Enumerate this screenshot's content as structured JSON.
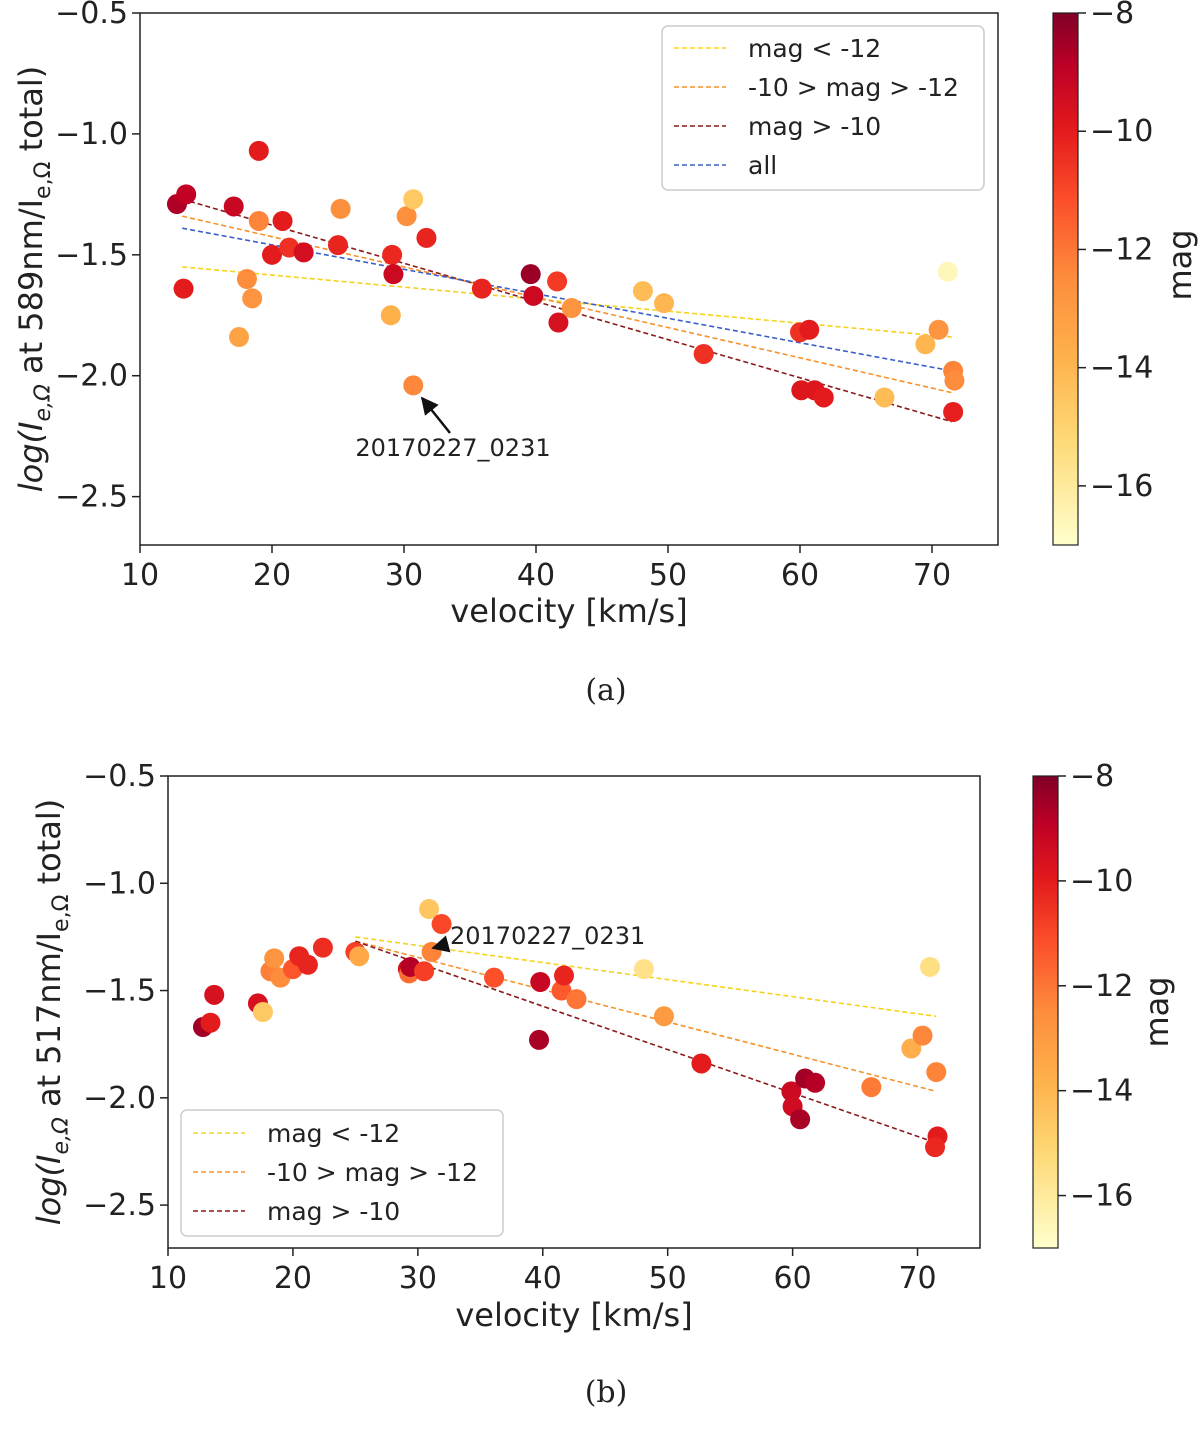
{
  "chart_data": [
    {
      "type": "scatter",
      "panel_label": "(a)",
      "xlabel": "velocity [km/s]",
      "ylabel_prefix": "log(I",
      "ylabel_sub1": "e,Ω",
      "ylabel_mid": " at 589nm/I",
      "ylabel_sub2": "e,Ω",
      "ylabel_suffix": " total)",
      "xlim": [
        10,
        75
      ],
      "ylim": [
        -2.7,
        -0.5
      ],
      "xticks": [
        10,
        20,
        30,
        40,
        50,
        60,
        70
      ],
      "xtick_labels": [
        "10",
        "20",
        "30",
        "40",
        "50",
        "60",
        "70"
      ],
      "yticks": [
        -2.5,
        -2.0,
        -1.5,
        -1.0,
        -0.5
      ],
      "ytick_labels": [
        "−2.5",
        "−2.0",
        "−1.5",
        "−1.0",
        "−0.5"
      ],
      "grid": false,
      "legend_position": "top-right",
      "colorbar": {
        "label": "mag",
        "range": [
          -17,
          -8
        ],
        "ticks": [
          -8,
          -10,
          -12,
          -14,
          -16
        ],
        "tick_labels": [
          "−8",
          "−10",
          "−12",
          "−14",
          "−16"
        ]
      },
      "points": [
        {
          "x": 12.8,
          "y": -1.29,
          "mag": -8.7
        },
        {
          "x": 13.5,
          "y": -1.25,
          "mag": -9.0
        },
        {
          "x": 13.3,
          "y": -1.64,
          "mag": -10.0
        },
        {
          "x": 17.1,
          "y": -1.3,
          "mag": -9.2
        },
        {
          "x": 17.5,
          "y": -1.84,
          "mag": -13.3
        },
        {
          "x": 18.1,
          "y": -1.6,
          "mag": -12.5
        },
        {
          "x": 18.5,
          "y": -1.68,
          "mag": -12.8
        },
        {
          "x": 19.0,
          "y": -1.07,
          "mag": -10.0
        },
        {
          "x": 19.0,
          "y": -1.36,
          "mag": -12.3
        },
        {
          "x": 20.0,
          "y": -1.5,
          "mag": -10.0
        },
        {
          "x": 20.8,
          "y": -1.36,
          "mag": -10.0
        },
        {
          "x": 21.3,
          "y": -1.47,
          "mag": -10.5
        },
        {
          "x": 22.4,
          "y": -1.49,
          "mag": -9.5
        },
        {
          "x": 25.0,
          "y": -1.46,
          "mag": -10.2
        },
        {
          "x": 25.2,
          "y": -1.31,
          "mag": -12.6
        },
        {
          "x": 29.1,
          "y": -1.5,
          "mag": -10.3
        },
        {
          "x": 29.2,
          "y": -1.58,
          "mag": -9.3
        },
        {
          "x": 29.0,
          "y": -1.75,
          "mag": -13.8
        },
        {
          "x": 30.2,
          "y": -1.34,
          "mag": -12.6
        },
        {
          "x": 30.7,
          "y": -1.27,
          "mag": -14.6
        },
        {
          "x": 30.7,
          "y": -2.04,
          "mag": -12.4
        },
        {
          "x": 31.7,
          "y": -1.43,
          "mag": -10.2
        },
        {
          "x": 35.9,
          "y": -1.64,
          "mag": -10.2
        },
        {
          "x": 39.6,
          "y": -1.58,
          "mag": -8.4
        },
        {
          "x": 39.8,
          "y": -1.67,
          "mag": -9.3
        },
        {
          "x": 41.6,
          "y": -1.61,
          "mag": -10.7
        },
        {
          "x": 41.7,
          "y": -1.78,
          "mag": -9.6
        },
        {
          "x": 42.7,
          "y": -1.72,
          "mag": -12.8
        },
        {
          "x": 48.1,
          "y": -1.65,
          "mag": -14.2
        },
        {
          "x": 49.7,
          "y": -1.7,
          "mag": -14.0
        },
        {
          "x": 52.7,
          "y": -1.91,
          "mag": -10.5
        },
        {
          "x": 60.0,
          "y": -1.82,
          "mag": -10.5
        },
        {
          "x": 60.7,
          "y": -1.81,
          "mag": -10.0
        },
        {
          "x": 60.1,
          "y": -2.06,
          "mag": -9.8
        },
        {
          "x": 61.1,
          "y": -2.06,
          "mag": -9.8
        },
        {
          "x": 61.8,
          "y": -2.09,
          "mag": -10.0
        },
        {
          "x": 66.4,
          "y": -2.09,
          "mag": -14.2
        },
        {
          "x": 69.5,
          "y": -1.87,
          "mag": -14.0
        },
        {
          "x": 70.5,
          "y": -1.81,
          "mag": -12.8
        },
        {
          "x": 71.2,
          "y": -1.57,
          "mag": -16.6
        },
        {
          "x": 71.6,
          "y": -1.98,
          "mag": -12.3
        },
        {
          "x": 71.7,
          "y": -2.02,
          "mag": -12.5
        },
        {
          "x": 71.6,
          "y": -2.15,
          "mag": -10.1
        }
      ],
      "series": [
        {
          "name": "mag < -12",
          "color": "#f5d21e",
          "x": [
            13.2,
            71.5
          ],
          "y": [
            -1.55,
            -1.84
          ]
        },
        {
          "name": "-10 > mag > -12",
          "color": "#f5922a",
          "x": [
            13.2,
            71.5
          ],
          "y": [
            -1.34,
            -2.07
          ]
        },
        {
          "name": "mag > -10",
          "color": "#8b1a1a",
          "x": [
            13.2,
            71.5
          ],
          "y": [
            -1.27,
            -2.19
          ]
        },
        {
          "name": "all",
          "color": "#3a5fc8",
          "x": [
            13.2,
            71.5
          ],
          "y": [
            -1.39,
            -1.98
          ]
        }
      ],
      "annotation": {
        "text": "20170227_0231",
        "x": 30.7,
        "y": -2.04
      }
    },
    {
      "type": "scatter",
      "panel_label": "(b)",
      "xlabel": "velocity [km/s]",
      "ylabel_prefix": "log(I",
      "ylabel_sub1": "e,Ω",
      "ylabel_mid": " at 517nm/I",
      "ylabel_sub2": "e,Ω",
      "ylabel_suffix": " total)",
      "xlim": [
        10,
        75
      ],
      "ylim": [
        -2.7,
        -0.5
      ],
      "xticks": [
        10,
        20,
        30,
        40,
        50,
        60,
        70
      ],
      "xtick_labels": [
        "10",
        "20",
        "30",
        "40",
        "50",
        "60",
        "70"
      ],
      "yticks": [
        -2.5,
        -2.0,
        -1.5,
        -1.0,
        -0.5
      ],
      "ytick_labels": [
        "−2.5",
        "−2.0",
        "−1.5",
        "−1.0",
        "−0.5"
      ],
      "grid": false,
      "legend_position": "bottom-left",
      "colorbar": {
        "label": "mag",
        "range": [
          -17,
          -8
        ],
        "ticks": [
          -8,
          -10,
          -12,
          -14,
          -16
        ],
        "tick_labels": [
          "−8",
          "−10",
          "−12",
          "−14",
          "−16"
        ]
      },
      "points": [
        {
          "x": 12.8,
          "y": -1.67,
          "mag": -8.5
        },
        {
          "x": 13.4,
          "y": -1.65,
          "mag": -10.0
        },
        {
          "x": 13.7,
          "y": -1.52,
          "mag": -9.6
        },
        {
          "x": 17.2,
          "y": -1.56,
          "mag": -9.6
        },
        {
          "x": 17.6,
          "y": -1.6,
          "mag": -14.6
        },
        {
          "x": 18.2,
          "y": -1.41,
          "mag": -12.2
        },
        {
          "x": 18.5,
          "y": -1.35,
          "mag": -12.8
        },
        {
          "x": 19.0,
          "y": -1.44,
          "mag": -12.5
        },
        {
          "x": 20.0,
          "y": -1.4,
          "mag": -11.3
        },
        {
          "x": 20.5,
          "y": -1.34,
          "mag": -10.2
        },
        {
          "x": 21.2,
          "y": -1.38,
          "mag": -10.2
        },
        {
          "x": 22.4,
          "y": -1.3,
          "mag": -10.4
        },
        {
          "x": 25.0,
          "y": -1.32,
          "mag": -10.8
        },
        {
          "x": 25.3,
          "y": -1.34,
          "mag": -13.5
        },
        {
          "x": 29.2,
          "y": -1.4,
          "mag": -9.5
        },
        {
          "x": 29.3,
          "y": -1.42,
          "mag": -11.8
        },
        {
          "x": 29.4,
          "y": -1.39,
          "mag": -8.8
        },
        {
          "x": 30.5,
          "y": -1.41,
          "mag": -10.8
        },
        {
          "x": 30.9,
          "y": -1.12,
          "mag": -14.5
        },
        {
          "x": 31.1,
          "y": -1.32,
          "mag": -12.3
        },
        {
          "x": 31.9,
          "y": -1.19,
          "mag": -11.0
        },
        {
          "x": 36.1,
          "y": -1.44,
          "mag": -11.2
        },
        {
          "x": 39.7,
          "y": -1.73,
          "mag": -8.6
        },
        {
          "x": 39.8,
          "y": -1.46,
          "mag": -9.2
        },
        {
          "x": 41.5,
          "y": -1.5,
          "mag": -11.4
        },
        {
          "x": 41.7,
          "y": -1.43,
          "mag": -10.2
        },
        {
          "x": 42.7,
          "y": -1.54,
          "mag": -12.0
        },
        {
          "x": 48.1,
          "y": -1.4,
          "mag": -15.6
        },
        {
          "x": 49.7,
          "y": -1.62,
          "mag": -13.0
        },
        {
          "x": 52.7,
          "y": -1.84,
          "mag": -10.0
        },
        {
          "x": 59.9,
          "y": -1.97,
          "mag": -9.3
        },
        {
          "x": 60.0,
          "y": -2.04,
          "mag": -9.4
        },
        {
          "x": 60.6,
          "y": -2.1,
          "mag": -8.6
        },
        {
          "x": 61.0,
          "y": -1.91,
          "mag": -8.5
        },
        {
          "x": 61.8,
          "y": -1.93,
          "mag": -8.8
        },
        {
          "x": 66.3,
          "y": -1.95,
          "mag": -12.1
        },
        {
          "x": 69.5,
          "y": -1.77,
          "mag": -13.7
        },
        {
          "x": 70.4,
          "y": -1.71,
          "mag": -12.4
        },
        {
          "x": 71.0,
          "y": -1.39,
          "mag": -15.5
        },
        {
          "x": 71.5,
          "y": -1.88,
          "mag": -12.3
        },
        {
          "x": 71.6,
          "y": -2.18,
          "mag": -10.0
        },
        {
          "x": 71.4,
          "y": -2.23,
          "mag": -10.3
        }
      ],
      "series": [
        {
          "name": "mag < -12",
          "color": "#f5d21e",
          "x": [
            25.0,
            71.5
          ],
          "y": [
            -1.25,
            -1.62
          ]
        },
        {
          "name": "-10 > mag > -12",
          "color": "#f5922a",
          "x": [
            25.0,
            71.5
          ],
          "y": [
            -1.27,
            -1.97
          ]
        },
        {
          "name": "mag > -10",
          "color": "#8b1a1a",
          "x": [
            25.0,
            71.5
          ],
          "y": [
            -1.27,
            -2.21
          ]
        }
      ],
      "annotation": {
        "text": "20170227_0231",
        "x": 31.1,
        "y": -1.32
      }
    }
  ]
}
